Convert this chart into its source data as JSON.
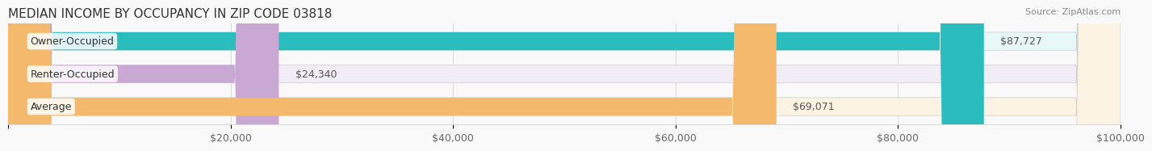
{
  "title": "MEDIAN INCOME BY OCCUPANCY IN ZIP CODE 03818",
  "source": "Source: ZipAtlas.com",
  "categories": [
    "Owner-Occupied",
    "Renter-Occupied",
    "Average"
  ],
  "values": [
    87727,
    24340,
    69071
  ],
  "labels": [
    "$87,727",
    "$24,340",
    "$69,071"
  ],
  "bar_colors": [
    "#2bbcbe",
    "#c9a8d4",
    "#f5b96e"
  ],
  "bar_bg_colors": [
    "#e8f8f8",
    "#f2ecf7",
    "#fdf3e3"
  ],
  "xlim": [
    0,
    100000
  ],
  "xticks": [
    0,
    20000,
    40000,
    60000,
    80000,
    100000
  ],
  "xticklabels": [
    "",
    "$20,000",
    "$40,000",
    "$60,000",
    "$80,000",
    "$100,000"
  ],
  "title_fontsize": 11,
  "source_fontsize": 8,
  "label_fontsize": 9,
  "bar_label_fontsize": 9,
  "bar_height": 0.55,
  "background_color": "#f9f9f9"
}
